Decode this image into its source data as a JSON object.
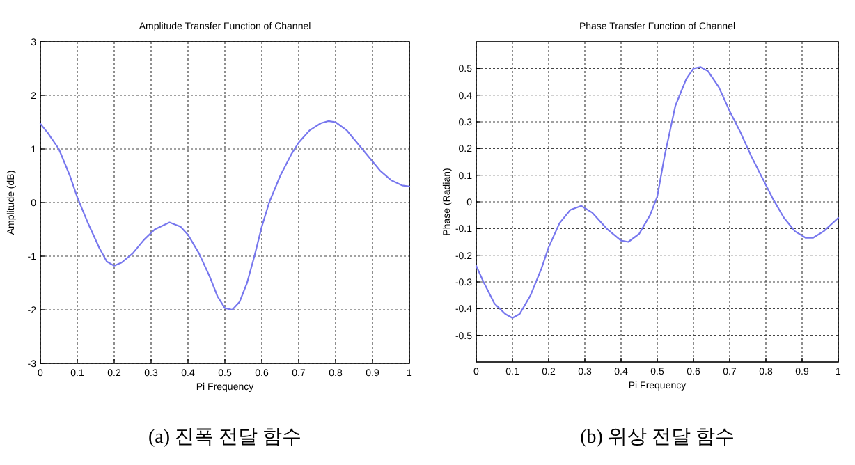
{
  "chart_data": [
    {
      "type": "line",
      "title": "Amplitude Transfer Function of Channel",
      "xlabel": "Pi Frequency",
      "ylabel": "Amplitude (dB)",
      "annotations": [
        "(a) 진폭 전달 함수"
      ],
      "xlim": [
        0,
        1
      ],
      "ylim": [
        -3,
        3
      ],
      "xticks": [
        0,
        0.1,
        0.2,
        0.3,
        0.4,
        0.5,
        0.6,
        0.7,
        0.8,
        0.9,
        1
      ],
      "yticks": [
        -3,
        -2,
        -1,
        0,
        1,
        2,
        3
      ],
      "grid": true,
      "line_style": "solid",
      "marker": "none",
      "series": [
        {
          "color": "#7777ee",
          "x": [
            0,
            0.02,
            0.05,
            0.08,
            0.1,
            0.13,
            0.16,
            0.18,
            0.2,
            0.22,
            0.25,
            0.28,
            0.31,
            0.35,
            0.38,
            0.4,
            0.43,
            0.46,
            0.48,
            0.5,
            0.52,
            0.54,
            0.56,
            0.58,
            0.6,
            0.62,
            0.65,
            0.68,
            0.7,
            0.73,
            0.76,
            0.78,
            0.8,
            0.83,
            0.86,
            0.89,
            0.92,
            0.95,
            0.98,
            1
          ],
          "values": [
            1.47,
            1.3,
            1.0,
            0.5,
            0.1,
            -0.4,
            -0.85,
            -1.1,
            -1.18,
            -1.12,
            -0.95,
            -0.7,
            -0.5,
            -0.37,
            -0.45,
            -0.6,
            -0.95,
            -1.4,
            -1.75,
            -1.97,
            -2.0,
            -1.85,
            -1.5,
            -1.0,
            -0.45,
            0.0,
            0.5,
            0.9,
            1.12,
            1.35,
            1.48,
            1.52,
            1.5,
            1.35,
            1.1,
            0.85,
            0.6,
            0.42,
            0.32,
            0.3
          ]
        }
      ]
    },
    {
      "type": "line",
      "title": "Phase Transfer Function of Channel",
      "xlabel": "Pi Frequency",
      "ylabel": "Phase (Radian)",
      "annotations": [
        "(b) 위상 전달 함수"
      ],
      "xlim": [
        0,
        1
      ],
      "ylim": [
        -0.6,
        0.6
      ],
      "xticks": [
        0,
        0.1,
        0.2,
        0.3,
        0.4,
        0.5,
        0.6,
        0.7,
        0.8,
        0.9,
        1
      ],
      "yticks": [
        -0.5,
        -0.4,
        -0.3,
        -0.2,
        -0.1,
        0,
        0.1,
        0.2,
        0.3,
        0.4,
        0.5
      ],
      "grid": true,
      "line_style": "solid",
      "marker": "none",
      "series": [
        {
          "color": "#7777ee",
          "x": [
            0,
            0.02,
            0.05,
            0.08,
            0.1,
            0.12,
            0.15,
            0.18,
            0.2,
            0.23,
            0.26,
            0.29,
            0.32,
            0.36,
            0.4,
            0.42,
            0.45,
            0.48,
            0.5,
            0.52,
            0.55,
            0.58,
            0.6,
            0.62,
            0.64,
            0.67,
            0.7,
            0.73,
            0.76,
            0.79,
            0.82,
            0.85,
            0.88,
            0.91,
            0.93,
            0.96,
            1
          ],
          "values": [
            -0.24,
            -0.3,
            -0.38,
            -0.42,
            -0.435,
            -0.42,
            -0.35,
            -0.25,
            -0.17,
            -0.08,
            -0.03,
            -0.015,
            -0.04,
            -0.1,
            -0.145,
            -0.15,
            -0.12,
            -0.05,
            0.02,
            0.17,
            0.36,
            0.46,
            0.5,
            0.505,
            0.49,
            0.43,
            0.34,
            0.26,
            0.17,
            0.09,
            0.01,
            -0.06,
            -0.11,
            -0.135,
            -0.135,
            -0.11,
            -0.06
          ]
        }
      ]
    }
  ]
}
